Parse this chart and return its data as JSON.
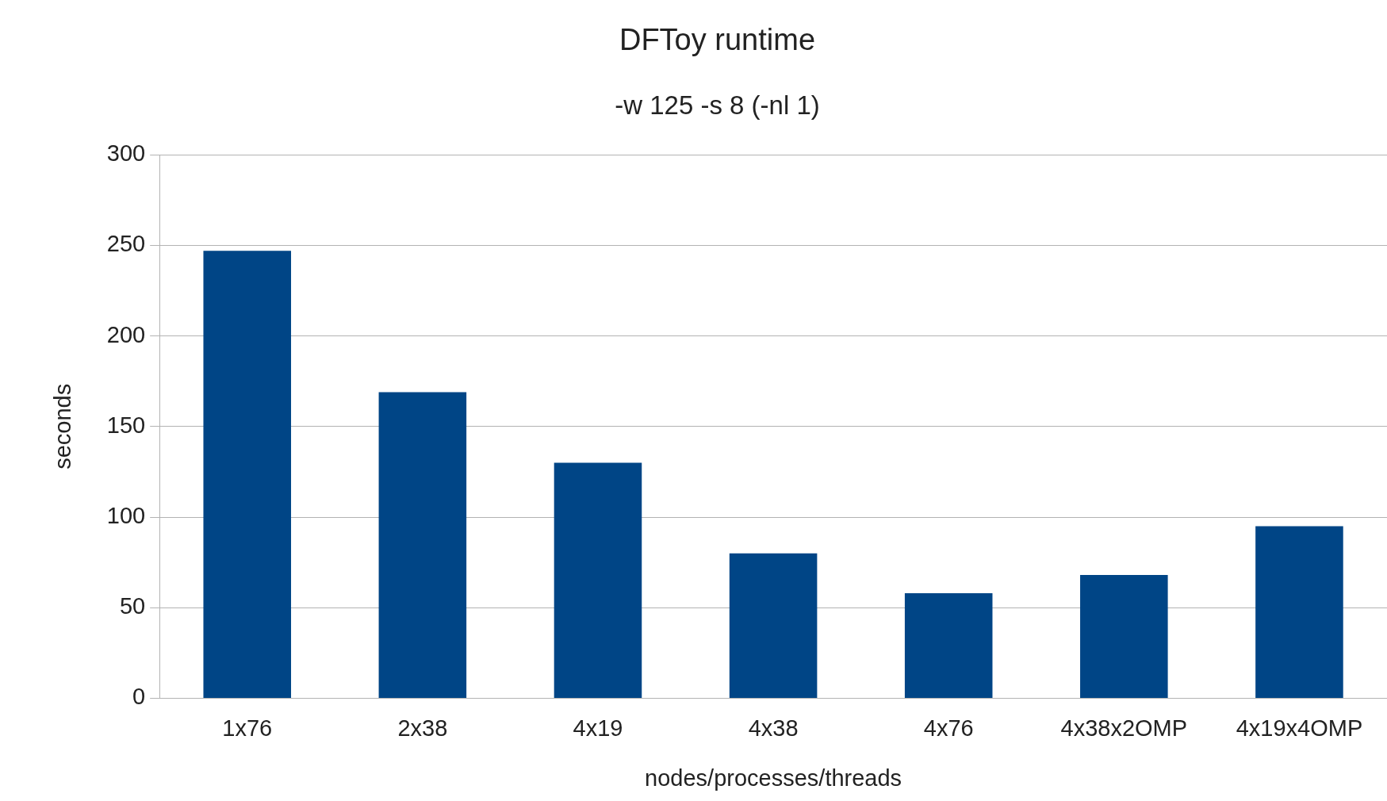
{
  "chart_data": {
    "type": "bar",
    "title": "DFToy runtime",
    "subtitle": "-w 125 -s 8 (-nl 1)",
    "xlabel": "nodes/processes/threads",
    "ylabel": "seconds",
    "categories": [
      "1x76",
      "2x38",
      "4x19",
      "4x38",
      "4x76",
      "4x38x2OMP",
      "4x19x4OMP"
    ],
    "values": [
      247,
      169,
      130,
      80,
      58,
      68,
      95
    ],
    "color": "#004586",
    "ylim": [
      0,
      300
    ],
    "yticks": [
      0,
      50,
      100,
      150,
      200,
      250,
      300
    ],
    "grid": "y",
    "legend": false
  }
}
